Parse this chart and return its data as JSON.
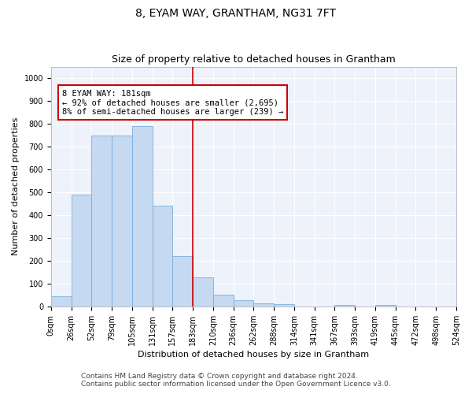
{
  "title": "8, EYAM WAY, GRANTHAM, NG31 7FT",
  "subtitle": "Size of property relative to detached houses in Grantham",
  "xlabel": "Distribution of detached houses by size in Grantham",
  "ylabel": "Number of detached properties",
  "bar_color": "#c5d9f0",
  "bar_edge_color": "#7aadda",
  "bg_color": "#eef2fa",
  "grid_color": "#ffffff",
  "tick_labels": [
    "0sqm",
    "26sqm",
    "52sqm",
    "79sqm",
    "105sqm",
    "131sqm",
    "157sqm",
    "183sqm",
    "210sqm",
    "236sqm",
    "262sqm",
    "288sqm",
    "314sqm",
    "341sqm",
    "367sqm",
    "393sqm",
    "419sqm",
    "445sqm",
    "472sqm",
    "498sqm",
    "524sqm"
  ],
  "bar_values": [
    43,
    490,
    750,
    750,
    790,
    440,
    220,
    128,
    52,
    28,
    15,
    10,
    0,
    0,
    8,
    0,
    8,
    0,
    0,
    0
  ],
  "ylim": [
    0,
    1050
  ],
  "yticks": [
    0,
    100,
    200,
    300,
    400,
    500,
    600,
    700,
    800,
    900,
    1000
  ],
  "property_label": "8 EYAM WAY: 181sqm",
  "annotation_line1": "← 92% of detached houses are smaller (2,695)",
  "annotation_line2": "8% of semi-detached houses are larger (239) →",
  "vline_x": 7.0,
  "footer_line1": "Contains HM Land Registry data © Crown copyright and database right 2024.",
  "footer_line2": "Contains public sector information licensed under the Open Government Licence v3.0.",
  "title_fontsize": 10,
  "subtitle_fontsize": 9,
  "axis_label_fontsize": 8,
  "tick_fontsize": 7,
  "annotation_fontsize": 7.5,
  "footer_fontsize": 6.5
}
